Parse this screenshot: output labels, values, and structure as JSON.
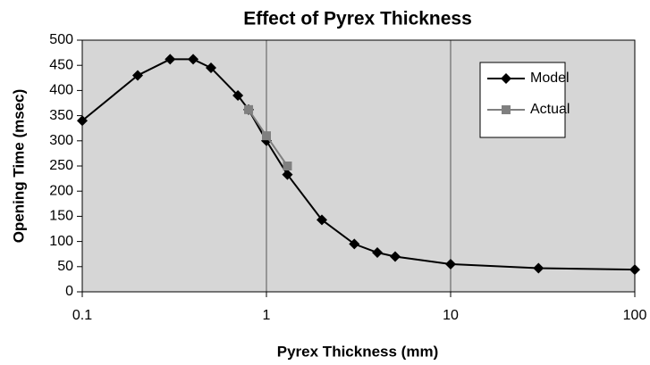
{
  "chart_data": {
    "type": "line",
    "title": "Effect of Pyrex Thickness",
    "xlabel": "Pyrex Thickness (mm)",
    "ylabel": "Opening Time (msec)",
    "xscale": "log",
    "xlim": [
      0.1,
      100
    ],
    "xticks": [
      0.1,
      1,
      10,
      100
    ],
    "ylim": [
      0,
      500
    ],
    "yticks": [
      0,
      50,
      100,
      150,
      200,
      250,
      300,
      350,
      400,
      450,
      500
    ],
    "xgrid": true,
    "ygrid": false,
    "legend": "upper right",
    "series": [
      {
        "name": "Model",
        "color": "#000000",
        "marker": "diamond",
        "x": [
          0.1,
          0.2,
          0.3,
          0.4,
          0.5,
          0.7,
          0.8,
          1,
          1.3,
          2,
          3,
          4,
          5,
          10,
          30,
          100
        ],
        "values": [
          340,
          430,
          462,
          462,
          445,
          390,
          362,
          300,
          233,
          143,
          95,
          78,
          70,
          55,
          47,
          44
        ]
      },
      {
        "name": "Actual",
        "color": "#808080",
        "marker": "square",
        "x": [
          0.8,
          1,
          1.3
        ],
        "values": [
          362,
          310,
          250
        ]
      }
    ]
  }
}
